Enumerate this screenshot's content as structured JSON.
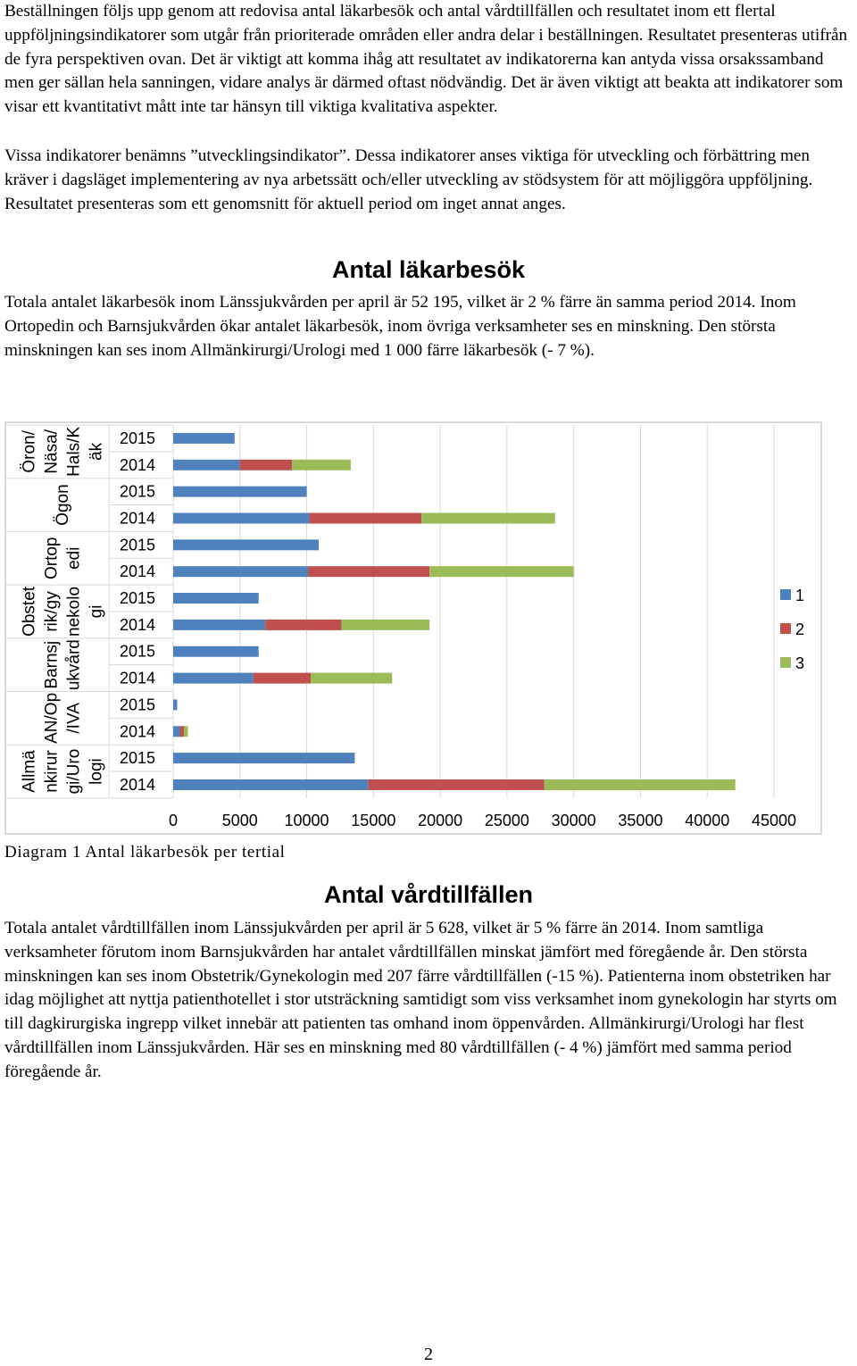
{
  "paragraphs": [
    "Beställningen följs upp genom att redovisa antal läkarbesök och antal vårdtillfällen och resultatet inom ett flertal uppföljningsindikatorer som utgår från prioriterade områden eller andra delar i beställningen. Resultatet presenteras utifrån de fyra perspektiven ovan. Det är viktigt att komma ihåg att resultatet av indikatorerna kan antyda vissa orsakssamband men ger sällan hela sanningen, vidare analys är därmed oftast nödvändig. Det är även viktigt att beakta att indikatorer som visar ett kvantitativt mått inte tar hänsyn till viktiga kvalitativa aspekter.",
    "Vissa indikatorer benämns ”utvecklingsindikator”. Dessa indikatorer anses viktiga för utveckling och förbättring men kräver i dagsläget implementering av nya arbetssätt och/eller utveckling av stödsystem för att möjliggöra uppföljning. Resultatet presenteras som ett genomsnitt för aktuell period om inget annat anges."
  ],
  "section1": {
    "heading": "Antal läkarbesök",
    "text": "Totala antalet läkarbesök inom Länssjukvården per april är 52 195, vilket är 2 % färre än samma period 2014. Inom Ortopedin och Barnsjukvården ökar antalet läkarbesök, inom övriga verksamheter ses en minskning. Den största minskningen kan ses inom Allmänkirurgi/Urologi med 1 000 färre läkarbesök (- 7 %)."
  },
  "caption": "Diagram 1 Antal läkarbesök per tertial",
  "section2": {
    "heading": "Antal vårdtillfällen",
    "text": "Totala antalet vårdtillfällen inom Länssjukvården per april är 5 628, vilket är 5 % färre än 2014. Inom samtliga verksamheter förutom inom Barnsjukvården har antalet vårdtillfällen minskat jämfört med föregående år. Den största minskningen kan ses inom Obstetrik/Gynekologin med 207 färre vårdtillfällen (-15 %). Patienterna inom obstetriken har idag möjlighet att nyttja patienthotellet i stor utsträckning samtidigt som viss verksamhet inom gynekologin har styrts om till dagkirurgiska ingrepp vilket innebär att patienten tas omhand inom öppenvården. Allmänkirurgi/Urologi har flest vårdtillfällen inom Länssjukvården. Här ses en minskning med 80 vårdtillfällen (- 4 %) jämfört med samma period föregående år."
  },
  "page_number": "2",
  "chart_data": {
    "type": "bar",
    "orientation": "horizontal",
    "stacked": true,
    "groups": [
      {
        "label_lines": [
          "Öron/",
          "Näsa/",
          "Hals/K",
          "äk"
        ],
        "years": [
          "2015",
          "2014"
        ]
      },
      {
        "label_lines": [
          "Ögon"
        ],
        "years": [
          "2015",
          "2014"
        ]
      },
      {
        "label_lines": [
          "Ortop",
          "edi"
        ],
        "years": [
          "2015",
          "2014"
        ]
      },
      {
        "label_lines": [
          "Obstet",
          "rik/gy",
          "nekolo",
          "gi"
        ],
        "years": [
          "2015",
          "2014"
        ]
      },
      {
        "label_lines": [
          "Barnsj",
          "ukvård"
        ],
        "years": [
          "2015",
          "2014"
        ]
      },
      {
        "label_lines": [
          "AN/Op",
          "/IVA"
        ],
        "years": [
          "2015",
          "2014"
        ]
      },
      {
        "label_lines": [
          "Allmä",
          "nkirur",
          "gi/Uro",
          "logi"
        ],
        "years": [
          "2015",
          "2014"
        ]
      }
    ],
    "categories": [
      "2015",
      "2014",
      "2015",
      "2014",
      "2015",
      "2014",
      "2015",
      "2014",
      "2015",
      "2014",
      "2015",
      "2014",
      "2015",
      "2014"
    ],
    "series": [
      {
        "name": "1",
        "color": "#4f81bd",
        "values": [
          4600,
          5000,
          10000,
          10200,
          10900,
          10100,
          6400,
          6900,
          6400,
          6000,
          300,
          500,
          13600,
          14600
        ]
      },
      {
        "name": "2",
        "color": "#c0504d",
        "values": [
          0,
          3900,
          0,
          8400,
          0,
          9100,
          0,
          5700,
          0,
          4300,
          0,
          300,
          0,
          13200
        ]
      },
      {
        "name": "3",
        "color": "#9bbb59",
        "values": [
          0,
          4400,
          0,
          10000,
          0,
          10800,
          0,
          6600,
          0,
          6100,
          0,
          300,
          0,
          14300
        ]
      }
    ],
    "xlim": [
      0,
      45000
    ],
    "xticks": [
      "0",
      "5000",
      "10000",
      "15000",
      "20000",
      "25000",
      "30000",
      "35000",
      "40000",
      "45000"
    ],
    "grid": true,
    "legend_position": "right"
  }
}
